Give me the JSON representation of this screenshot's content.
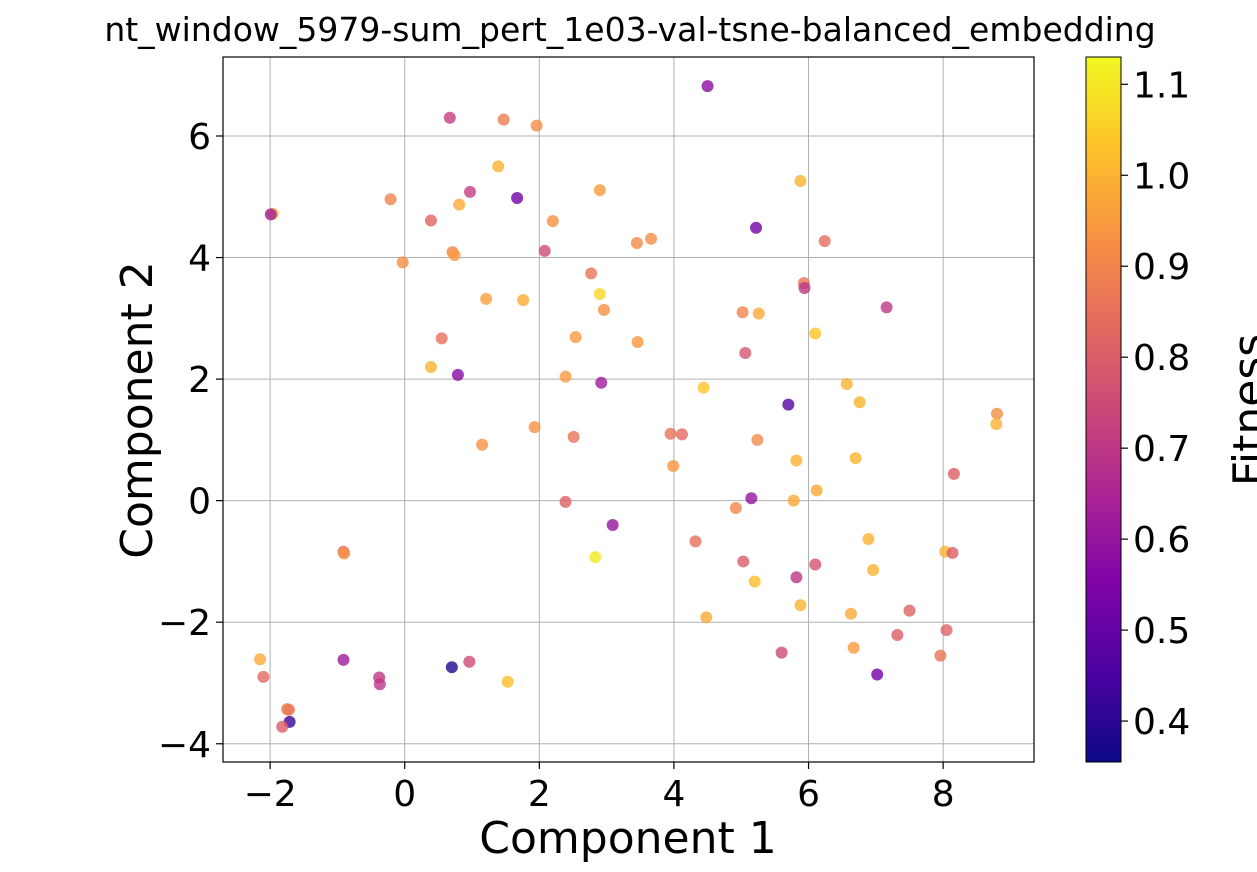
{
  "chart_data": {
    "type": "scatter",
    "title": "nt_window_5979-sum_pert_1e03-val-tsne-balanced_embedding",
    "xlabel": "Component 1",
    "ylabel": "Component 2",
    "xlim": [
      -2.7,
      9.35
    ],
    "ylim": [
      -4.3,
      7.3
    ],
    "xticks": [
      -2,
      0,
      2,
      4,
      6,
      8
    ],
    "yticks": [
      -4,
      -2,
      0,
      2,
      4,
      6
    ],
    "xtick_labels": [
      "−2",
      "0",
      "2",
      "4",
      "6",
      "8"
    ],
    "ytick_labels": [
      "−4",
      "−2",
      "0",
      "2",
      "4",
      "6"
    ],
    "grid": true,
    "colormap": "plasma",
    "colorbar": {
      "label": "Fitness",
      "range": [
        0.355,
        1.13
      ],
      "ticks": [
        0.4,
        0.5,
        0.6,
        0.7,
        0.8,
        0.9,
        1.0,
        1.1
      ],
      "tick_labels": [
        "0.4",
        "0.5",
        "0.6",
        "0.7",
        "0.8",
        "0.9",
        "1.0",
        "1.1"
      ]
    },
    "points": [
      {
        "x": 4.5,
        "y": 6.82,
        "c": 0.58
      },
      {
        "x": 0.67,
        "y": 6.3,
        "c": 0.72
      },
      {
        "x": 1.47,
        "y": 6.27,
        "c": 0.88
      },
      {
        "x": 1.96,
        "y": 6.17,
        "c": 0.92
      },
      {
        "x": 1.39,
        "y": 5.5,
        "c": 1.0
      },
      {
        "x": 2.9,
        "y": 5.11,
        "c": 0.95
      },
      {
        "x": 0.97,
        "y": 5.08,
        "c": 0.72
      },
      {
        "x": 1.67,
        "y": 4.98,
        "c": 0.52
      },
      {
        "x": -0.21,
        "y": 4.96,
        "c": 0.9
      },
      {
        "x": 0.81,
        "y": 4.87,
        "c": 0.98
      },
      {
        "x": 5.88,
        "y": 5.26,
        "c": 1.0
      },
      {
        "x": -1.96,
        "y": 4.72,
        "c": 1.0
      },
      {
        "x": -1.99,
        "y": 4.71,
        "c": 0.62
      },
      {
        "x": 0.39,
        "y": 4.61,
        "c": 0.82
      },
      {
        "x": 2.2,
        "y": 4.6,
        "c": 0.93
      },
      {
        "x": 5.22,
        "y": 4.49,
        "c": 0.52
      },
      {
        "x": 3.66,
        "y": 4.31,
        "c": 0.92
      },
      {
        "x": 6.24,
        "y": 4.27,
        "c": 0.84
      },
      {
        "x": 3.45,
        "y": 4.24,
        "c": 0.91
      },
      {
        "x": 2.08,
        "y": 4.11,
        "c": 0.75
      },
      {
        "x": 0.71,
        "y": 4.09,
        "c": 0.9
      },
      {
        "x": 0.74,
        "y": 4.04,
        "c": 0.95
      },
      {
        "x": -0.03,
        "y": 3.92,
        "c": 0.92
      },
      {
        "x": 2.77,
        "y": 3.74,
        "c": 0.86
      },
      {
        "x": 5.93,
        "y": 3.58,
        "c": 0.86
      },
      {
        "x": 5.94,
        "y": 3.5,
        "c": 0.7
      },
      {
        "x": 2.9,
        "y": 3.4,
        "c": 1.07
      },
      {
        "x": 1.21,
        "y": 3.32,
        "c": 0.96
      },
      {
        "x": 1.76,
        "y": 3.3,
        "c": 0.98
      },
      {
        "x": 7.16,
        "y": 3.18,
        "c": 0.7
      },
      {
        "x": 2.96,
        "y": 3.14,
        "c": 0.93
      },
      {
        "x": 5.02,
        "y": 3.1,
        "c": 0.9
      },
      {
        "x": 5.26,
        "y": 3.08,
        "c": 0.98
      },
      {
        "x": 6.1,
        "y": 2.75,
        "c": 1.04
      },
      {
        "x": 2.54,
        "y": 2.69,
        "c": 0.95
      },
      {
        "x": 0.55,
        "y": 2.67,
        "c": 0.85
      },
      {
        "x": 3.46,
        "y": 2.61,
        "c": 0.94
      },
      {
        "x": 5.06,
        "y": 2.43,
        "c": 0.78
      },
      {
        "x": 0.39,
        "y": 2.2,
        "c": 1.0
      },
      {
        "x": 0.79,
        "y": 2.07,
        "c": 0.57
      },
      {
        "x": 2.39,
        "y": 2.04,
        "c": 0.95
      },
      {
        "x": 2.92,
        "y": 1.94,
        "c": 0.62
      },
      {
        "x": 6.57,
        "y": 1.92,
        "c": 1.0
      },
      {
        "x": 4.44,
        "y": 1.86,
        "c": 1.04
      },
      {
        "x": 6.76,
        "y": 1.62,
        "c": 1.0
      },
      {
        "x": 5.7,
        "y": 1.58,
        "c": 0.47
      },
      {
        "x": 8.8,
        "y": 1.43,
        "c": 0.92
      },
      {
        "x": 8.79,
        "y": 1.26,
        "c": 1.0
      },
      {
        "x": 1.93,
        "y": 1.21,
        "c": 0.93
      },
      {
        "x": 3.95,
        "y": 1.1,
        "c": 0.86
      },
      {
        "x": 4.12,
        "y": 1.09,
        "c": 0.83
      },
      {
        "x": 2.51,
        "y": 1.05,
        "c": 0.86
      },
      {
        "x": 5.24,
        "y": 1.0,
        "c": 0.91
      },
      {
        "x": 1.15,
        "y": 0.92,
        "c": 0.93
      },
      {
        "x": 6.7,
        "y": 0.7,
        "c": 1.0
      },
      {
        "x": 5.82,
        "y": 0.66,
        "c": 1.0
      },
      {
        "x": 3.99,
        "y": 0.57,
        "c": 0.94
      },
      {
        "x": 8.16,
        "y": 0.44,
        "c": 0.8
      },
      {
        "x": 6.12,
        "y": 0.17,
        "c": 0.98
      },
      {
        "x": 5.15,
        "y": 0.04,
        "c": 0.6
      },
      {
        "x": 5.78,
        "y": 0.0,
        "c": 0.98
      },
      {
        "x": 2.39,
        "y": -0.02,
        "c": 0.81
      },
      {
        "x": 4.92,
        "y": -0.12,
        "c": 0.9
      },
      {
        "x": 3.09,
        "y": -0.4,
        "c": 0.6
      },
      {
        "x": 4.32,
        "y": -0.67,
        "c": 0.85
      },
      {
        "x": 6.89,
        "y": -0.63,
        "c": 1.0
      },
      {
        "x": -0.91,
        "y": -0.84,
        "c": 0.84
      },
      {
        "x": -0.9,
        "y": -0.87,
        "c": 0.93
      },
      {
        "x": 8.03,
        "y": -0.84,
        "c": 1.0
      },
      {
        "x": 8.14,
        "y": -0.86,
        "c": 0.8
      },
      {
        "x": 2.83,
        "y": -0.93,
        "c": 1.1
      },
      {
        "x": 5.03,
        "y": -1.0,
        "c": 0.8
      },
      {
        "x": 6.1,
        "y": -1.05,
        "c": 0.77
      },
      {
        "x": 6.96,
        "y": -1.14,
        "c": 1.0
      },
      {
        "x": 5.82,
        "y": -1.26,
        "c": 0.7
      },
      {
        "x": 5.2,
        "y": -1.33,
        "c": 1.02
      },
      {
        "x": 5.88,
        "y": -1.72,
        "c": 1.0
      },
      {
        "x": 7.5,
        "y": -1.81,
        "c": 0.82
      },
      {
        "x": 6.63,
        "y": -1.86,
        "c": 0.98
      },
      {
        "x": 4.48,
        "y": -1.92,
        "c": 0.98
      },
      {
        "x": 8.05,
        "y": -2.13,
        "c": 0.82
      },
      {
        "x": 7.32,
        "y": -2.21,
        "c": 0.8
      },
      {
        "x": 6.67,
        "y": -2.42,
        "c": 0.95
      },
      {
        "x": 5.6,
        "y": -2.5,
        "c": 0.75
      },
      {
        "x": 7.96,
        "y": -2.55,
        "c": 0.86
      },
      {
        "x": -2.15,
        "y": -2.61,
        "c": 0.98
      },
      {
        "x": -0.91,
        "y": -2.62,
        "c": 0.62
      },
      {
        "x": 0.96,
        "y": -2.65,
        "c": 0.75
      },
      {
        "x": 0.7,
        "y": -2.74,
        "c": 0.38
      },
      {
        "x": 7.02,
        "y": -2.86,
        "c": 0.53
      },
      {
        "x": -2.1,
        "y": -2.9,
        "c": 0.83
      },
      {
        "x": -0.38,
        "y": -2.91,
        "c": 0.7
      },
      {
        "x": 1.53,
        "y": -2.98,
        "c": 1.02
      },
      {
        "x": -0.37,
        "y": -3.02,
        "c": 0.7
      },
      {
        "x": -1.75,
        "y": -3.43,
        "c": 0.9
      },
      {
        "x": -1.72,
        "y": -3.44,
        "c": 0.86
      },
      {
        "x": -1.71,
        "y": -3.64,
        "c": 0.42
      },
      {
        "x": -1.82,
        "y": -3.72,
        "c": 0.8
      }
    ]
  }
}
